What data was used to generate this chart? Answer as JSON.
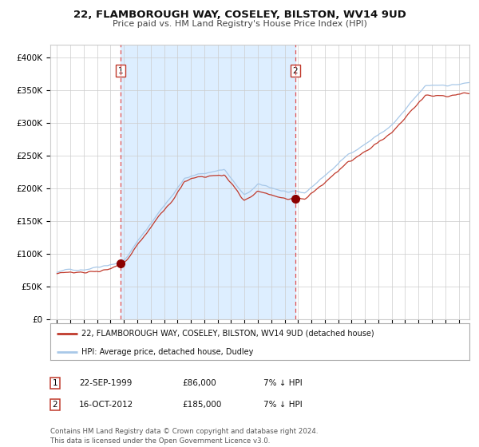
{
  "title": "22, FLAMBOROUGH WAY, COSELEY, BILSTON, WV14 9UD",
  "subtitle": "Price paid vs. HM Land Registry's House Price Index (HPI)",
  "legend_line1": "22, FLAMBOROUGH WAY, COSELEY, BILSTON, WV14 9UD (detached house)",
  "legend_line2": "HPI: Average price, detached house, Dudley",
  "table_rows": [
    [
      "1",
      "22-SEP-1999",
      "£86,000",
      "7% ↓ HPI"
    ],
    [
      "2",
      "16-OCT-2012",
      "£185,000",
      "7% ↓ HPI"
    ]
  ],
  "footnote": "Contains HM Land Registry data © Crown copyright and database right 2024.\nThis data is licensed under the Open Government Licence v3.0.",
  "sale1_date": 1999.73,
  "sale1_price": 86000,
  "sale2_date": 2012.79,
  "sale2_price": 185000,
  "hpi_color": "#a8c8e8",
  "price_color": "#c0392b",
  "dashed_color": "#e05050",
  "shaded_color": "#ddeeff",
  "marker_color": "#8b0000",
  "background_color": "#ffffff",
  "grid_color": "#cccccc",
  "ylim": [
    0,
    420000
  ],
  "xlim_start": 1994.5,
  "xlim_end": 2025.8
}
